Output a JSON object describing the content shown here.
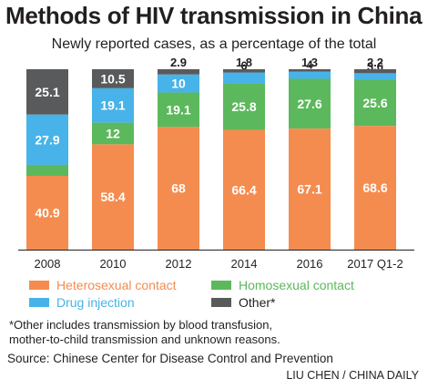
{
  "title": "Methods of HIV transmission in China",
  "subtitle": "Newly reported cases, as a percentage of the total",
  "chart_data": {
    "type": "bar",
    "stacked": true,
    "categories": [
      "2008",
      "2010",
      "2012",
      "2014",
      "2016",
      "2017 Q1-2"
    ],
    "series": [
      {
        "name": "Heterosexual contact",
        "color": "#f58c4f",
        "values": [
          40.9,
          58.4,
          68,
          66.4,
          67.1,
          68.6
        ]
      },
      {
        "name": "Homosexual contact",
        "color": "#5cb85c",
        "values": [
          6.1,
          12,
          19.1,
          25.8,
          27.6,
          25.6
        ]
      },
      {
        "name": "Drug injection",
        "color": "#47b3e8",
        "values": [
          27.9,
          19.1,
          10,
          6,
          4,
          3.6
        ]
      },
      {
        "name": "Other*",
        "color": "#595a5c",
        "values": [
          25.1,
          10.5,
          2.9,
          1.8,
          1.3,
          2.2
        ]
      }
    ],
    "ylim": [
      0,
      100
    ]
  },
  "legend": {
    "heterosexual": "Heterosexual contact",
    "homosexual": "Homosexual contact",
    "drug": "Drug injection",
    "other": "Other*"
  },
  "note": "*Other includes transmission by blood transfusion, mother-to-child transmission and unknown reasons.",
  "source": "Source: Chinese Center for Disease Control and Prevention",
  "credit": "LIU CHEN / CHINA DAILY"
}
